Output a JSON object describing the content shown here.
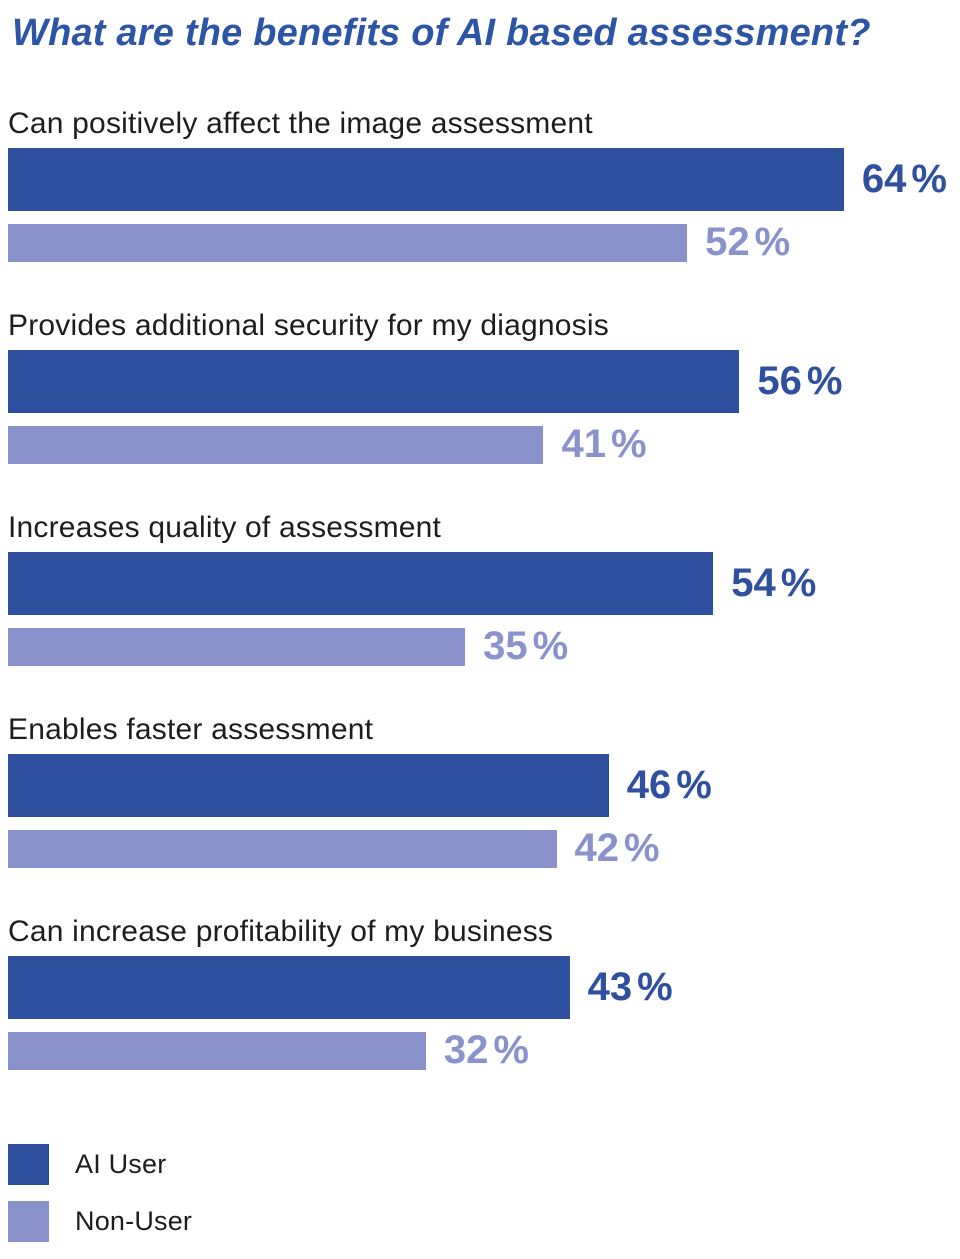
{
  "value_suffix": "%",
  "chart_data": {
    "type": "bar",
    "orientation": "horizontal",
    "title": "What are the benefits of AI based assessment?",
    "title_color": "#2d55a6",
    "categories": [
      "Can positively affect the image assessment",
      "Provides additional security for my diagnosis",
      "Increases quality of assessment",
      "Enables faster assessment",
      "Can increase profitability of my business"
    ],
    "series": [
      {
        "name": "AI User",
        "color": "#2e509e",
        "values": [
          64,
          56,
          54,
          46,
          43
        ]
      },
      {
        "name": "Non-User",
        "color": "#8a92cb",
        "values": [
          52,
          41,
          35,
          42,
          32
        ]
      }
    ],
    "value_unit": "%",
    "xlim": [
      0,
      73
    ],
    "grid": false,
    "legend_position": "bottom-left"
  }
}
